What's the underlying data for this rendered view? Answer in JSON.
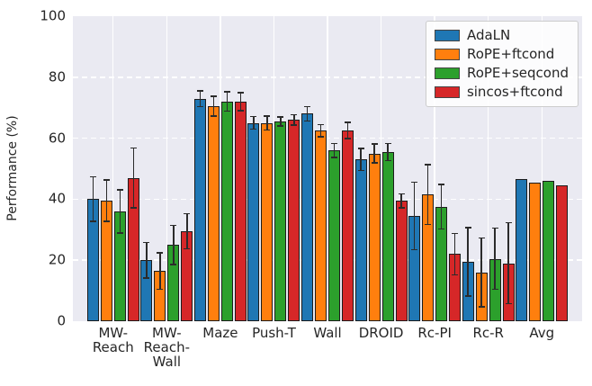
{
  "figure": {
    "background": "#ffffff",
    "plot_background": "#eaeaf2",
    "grid_color": "#ffffff",
    "text_color": "#262626",
    "bar_edge_color": "#1c1c1c",
    "error_color": "#2b2b2b"
  },
  "chart_data": {
    "type": "bar",
    "title": "",
    "xlabel": "",
    "ylabel": "Performance (%)",
    "ylim": [
      0,
      100
    ],
    "yticks": [
      0,
      20,
      40,
      60,
      80,
      100
    ],
    "grid": true,
    "legend_position": "upper right",
    "categories": [
      "MW-\nReach",
      "MW-\nReach-\nWall",
      "Maze",
      "Push-T",
      "Wall",
      "DROID",
      "Rc-PI",
      "Rc-R",
      "Avg"
    ],
    "series": [
      {
        "name": "AdaLN",
        "color": "#1f77b4",
        "values": [
          40,
          20,
          73,
          65,
          68,
          53,
          34.5,
          19.5,
          46.5
        ],
        "errors": [
          7.5,
          6,
          2.8,
          2.3,
          2.6,
          3.8,
          11.3,
          11.4,
          0
        ]
      },
      {
        "name": "RoPE+ftcond",
        "color": "#ff7f0e",
        "values": [
          39.5,
          16.5,
          70.5,
          65,
          62.5,
          55,
          41.5,
          16,
          45.5
        ],
        "errors": [
          7,
          6.2,
          3.5,
          2.5,
          2.2,
          3.3,
          10,
          11.5,
          0
        ]
      },
      {
        "name": "RoPE+seqcond",
        "color": "#2ca02c",
        "values": [
          36,
          25,
          72,
          65.5,
          56,
          55.5,
          37.5,
          20.5,
          46
        ],
        "errors": [
          7.3,
          6.6,
          3.4,
          1.7,
          2.5,
          3,
          7.5,
          10.3,
          0
        ]
      },
      {
        "name": "sincos+ftcond",
        "color": "#d62728",
        "values": [
          47,
          29.5,
          72,
          66,
          62.5,
          39.5,
          22,
          19,
          44.5
        ],
        "errors": [
          10,
          6,
          3.2,
          1.9,
          2.9,
          2.5,
          7,
          13.5,
          0
        ]
      }
    ]
  }
}
